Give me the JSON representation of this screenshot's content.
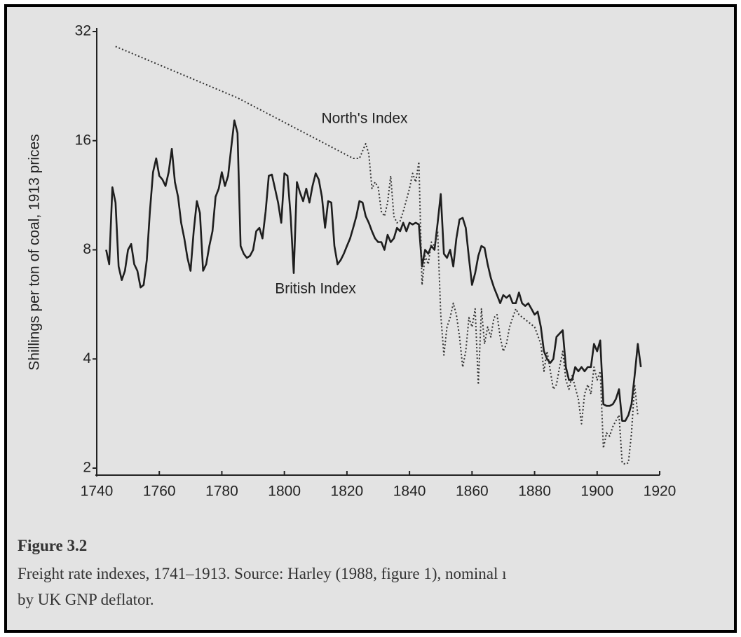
{
  "chart_data": {
    "type": "line",
    "ylabel": "Shillings per ton of coal, 1913 prices",
    "yscale": "log",
    "xlim": [
      1740,
      1920
    ],
    "xticks": [
      1740,
      1760,
      1780,
      1800,
      1820,
      1840,
      1860,
      1880,
      1900,
      1920
    ],
    "ylim": [
      2,
      32
    ],
    "yticks": [
      2,
      4,
      8,
      16,
      32
    ],
    "series": [
      {
        "name": "British Index",
        "color": "#1e1e1e",
        "dashed": false,
        "x": [
          1743,
          1744,
          1745,
          1746,
          1747,
          1748,
          1749,
          1750,
          1751,
          1752,
          1753,
          1754,
          1755,
          1756,
          1757,
          1758,
          1759,
          1760,
          1761,
          1762,
          1763,
          1764,
          1765,
          1766,
          1767,
          1768,
          1769,
          1770,
          1771,
          1772,
          1773,
          1774,
          1775,
          1776,
          1777,
          1778,
          1779,
          1780,
          1781,
          1782,
          1783,
          1784,
          1785,
          1786,
          1787,
          1788,
          1789,
          1790,
          1791,
          1792,
          1793,
          1794,
          1795,
          1796,
          1797,
          1798,
          1799,
          1800,
          1801,
          1802,
          1803,
          1804,
          1805,
          1806,
          1807,
          1808,
          1809,
          1810,
          1811,
          1812,
          1813,
          1814,
          1815,
          1816,
          1817,
          1818,
          1819,
          1820,
          1821,
          1822,
          1823,
          1824,
          1825,
          1826,
          1827,
          1828,
          1829,
          1830,
          1831,
          1832,
          1833,
          1834,
          1835,
          1836,
          1837,
          1838,
          1839,
          1840,
          1841,
          1842,
          1843,
          1844,
          1845,
          1846,
          1847,
          1848,
          1849,
          1850,
          1851,
          1852,
          1853,
          1854,
          1855,
          1856,
          1857,
          1858,
          1859,
          1860,
          1861,
          1862,
          1863,
          1864,
          1865,
          1866,
          1867,
          1868,
          1869,
          1870,
          1871,
          1872,
          1873,
          1874,
          1875,
          1876,
          1877,
          1878,
          1879,
          1880,
          1881,
          1882,
          1883,
          1884,
          1885,
          1886,
          1887,
          1888,
          1889,
          1890,
          1891,
          1892,
          1893,
          1894,
          1895,
          1896,
          1897,
          1898,
          1899,
          1900,
          1901,
          1902,
          1903,
          1904,
          1905,
          1906,
          1907,
          1908,
          1909,
          1910,
          1911,
          1912,
          1913,
          1914
        ],
        "values": [
          8.0,
          7.3,
          11.9,
          10.8,
          7.2,
          6.6,
          7.0,
          8.0,
          8.3,
          7.3,
          7.0,
          6.3,
          6.4,
          7.5,
          10.2,
          13.1,
          14.3,
          12.8,
          12.5,
          12.0,
          13.1,
          15.2,
          12.3,
          11.2,
          9.5,
          8.6,
          7.6,
          7.0,
          9.0,
          10.9,
          10.1,
          7.0,
          7.3,
          8.2,
          9.0,
          11.2,
          11.8,
          13.1,
          12.0,
          12.8,
          15.3,
          18.2,
          16.8,
          8.2,
          7.8,
          7.6,
          7.7,
          8.0,
          9.0,
          9.2,
          8.6,
          10.2,
          12.8,
          12.9,
          11.8,
          10.8,
          9.5,
          13.0,
          12.8,
          9.9,
          6.9,
          12.3,
          11.5,
          10.9,
          11.8,
          10.8,
          12.0,
          13.0,
          12.5,
          11.2,
          9.2,
          10.9,
          10.8,
          8.2,
          7.3,
          7.5,
          7.8,
          8.2,
          8.6,
          9.2,
          9.9,
          10.9,
          10.8,
          9.9,
          9.5,
          9.0,
          8.6,
          8.4,
          8.4,
          8.0,
          8.8,
          8.4,
          8.6,
          9.2,
          9.0,
          9.5,
          9.0,
          9.5,
          9.4,
          9.5,
          9.4,
          7.2,
          8.0,
          7.8,
          8.2,
          8.0,
          9.5,
          11.4,
          7.8,
          7.6,
          8.0,
          7.2,
          8.6,
          9.7,
          9.8,
          9.2,
          7.6,
          6.4,
          6.9,
          7.7,
          8.2,
          8.1,
          7.3,
          6.7,
          6.3,
          6.0,
          5.7,
          6.0,
          5.9,
          6.0,
          5.7,
          5.7,
          6.1,
          5.7,
          5.6,
          5.7,
          5.5,
          5.3,
          5.4,
          4.9,
          4.2,
          4.0,
          3.9,
          4.0,
          4.6,
          4.7,
          4.8,
          3.8,
          3.5,
          3.5,
          3.8,
          3.7,
          3.8,
          3.7,
          3.8,
          3.8,
          4.4,
          4.2,
          4.5,
          3.0,
          2.97,
          2.97,
          3.0,
          3.1,
          3.3,
          2.7,
          2.7,
          2.8,
          3.0,
          3.6,
          4.4,
          3.8
        ]
      },
      {
        "name": "North's Index",
        "color": "#333333",
        "dashed": true,
        "x": [
          1746,
          1785,
          1822,
          1824,
          1826,
          1827,
          1828,
          1829,
          1830,
          1831,
          1832,
          1833,
          1834,
          1835,
          1836,
          1837,
          1838,
          1840,
          1841,
          1842,
          1843,
          1844,
          1845,
          1846,
          1847,
          1848,
          1849,
          1850,
          1851,
          1852,
          1853,
          1854,
          1855,
          1856,
          1857,
          1858,
          1859,
          1860,
          1861,
          1862,
          1863,
          1864,
          1865,
          1866,
          1867,
          1868,
          1869,
          1870,
          1871,
          1872,
          1873,
          1874,
          1875,
          1880,
          1882,
          1883,
          1884,
          1886,
          1887,
          1888,
          1889,
          1890,
          1891,
          1892,
          1894,
          1895,
          1896,
          1897,
          1898,
          1899,
          1900,
          1901,
          1902,
          1903,
          1904,
          1905,
          1906,
          1907,
          1908,
          1909,
          1910,
          1911,
          1912,
          1913
        ],
        "values": [
          29.1,
          21.0,
          14.3,
          14.3,
          15.7,
          14.7,
          11.8,
          12.3,
          11.9,
          10.2,
          9.9,
          10.8,
          12.8,
          9.9,
          9.5,
          9.6,
          10.2,
          11.8,
          13.0,
          12.3,
          14.0,
          6.4,
          7.7,
          7.3,
          8.4,
          8.2,
          9.0,
          5.3,
          4.1,
          4.9,
          5.2,
          5.7,
          5.3,
          4.6,
          3.8,
          4.2,
          5.2,
          4.9,
          5.5,
          3.4,
          5.5,
          4.4,
          4.9,
          4.6,
          5.2,
          5.3,
          4.6,
          4.2,
          4.4,
          4.9,
          5.2,
          5.5,
          5.3,
          4.9,
          4.4,
          3.7,
          4.2,
          3.3,
          3.4,
          3.8,
          4.2,
          3.5,
          3.3,
          3.6,
          3.1,
          2.65,
          3.2,
          3.4,
          3.2,
          3.8,
          3.5,
          3.7,
          2.27,
          2.5,
          2.45,
          2.6,
          2.7,
          2.8,
          2.07,
          2.05,
          2.07,
          2.5,
          3.4,
          2.8
        ]
      }
    ]
  },
  "caption": {
    "label": "Figure 3.2",
    "lines": [
      "Freight rate indexes, 1741–1913. Source: Harley (1988, figure 1), nominal ı",
      "by UK GNP deflator."
    ]
  }
}
